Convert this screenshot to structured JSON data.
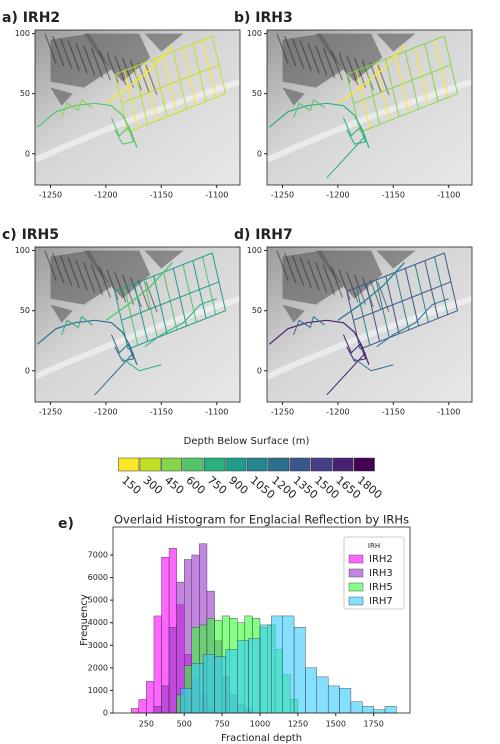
{
  "chart_data": [
    {
      "type": "map",
      "title": "a) IRH2",
      "xlim": [
        -1264,
        -1079
      ],
      "ylim": [
        -26,
        103
      ],
      "xticks": [
        -1250,
        -1200,
        -1150,
        -1100
      ],
      "yticks": [
        0,
        50,
        100
      ]
    },
    {
      "type": "map",
      "title": "b) IRH3",
      "xlim": [
        -1264,
        -1079
      ],
      "ylim": [
        -26,
        103
      ],
      "xticks": [
        -1250,
        -1200,
        -1150,
        -1100
      ],
      "yticks": [
        0,
        50,
        100
      ]
    },
    {
      "type": "map",
      "title": "c) IRH5",
      "xlim": [
        -1264,
        -1079
      ],
      "ylim": [
        -26,
        103
      ],
      "xticks": [
        -1250,
        -1200,
        -1150,
        -1100
      ],
      "yticks": [
        0,
        50,
        100
      ]
    },
    {
      "type": "map",
      "title": "d) IRH7",
      "xlim": [
        -1264,
        -1079
      ],
      "ylim": [
        -26,
        103
      ],
      "xticks": [
        -1250,
        -1200,
        -1150,
        -1100
      ],
      "yticks": [
        0,
        50,
        100
      ]
    },
    {
      "type": "colorbar",
      "title": "Depth Below Surface (m)",
      "levels": [
        150,
        300,
        450,
        600,
        750,
        900,
        1050,
        1200,
        1350,
        1500,
        1650,
        1800
      ],
      "colors": [
        "#fde725",
        "#c2df23",
        "#86d549",
        "#52c569",
        "#2ab07f",
        "#1e9b8a",
        "#25858e",
        "#2d708e",
        "#38588c",
        "#433e85",
        "#482173",
        "#440154"
      ]
    },
    {
      "type": "histogram",
      "title": "Overlaid Histogram for Englacial Reflection by IRHs",
      "panel_label": "e)",
      "x_label": "Fractional depth",
      "y_label": "Frequency",
      "legend_title": "IRH",
      "legend": "upper right",
      "xlim": [
        30,
        1990
      ],
      "ylim": [
        0,
        8240
      ],
      "xticks": [
        250,
        500,
        750,
        1000,
        1250,
        1500,
        1750
      ],
      "yticks": [
        0,
        1000,
        2000,
        3000,
        4000,
        5000,
        6000,
        7000
      ],
      "series": [
        {
          "name": "IRH2",
          "color": "#ff00ff",
          "bins": [
            150,
            200,
            250,
            300,
            350,
            400,
            450,
            500,
            550,
            600,
            650,
            700
          ],
          "values": [
            200,
            600,
            1400,
            4300,
            6900,
            7300,
            4800,
            2600,
            1500,
            800,
            300
          ]
        },
        {
          "name": "IRH3",
          "color": "#9933cc",
          "bins": [
            300,
            350,
            400,
            450,
            500,
            550,
            600,
            650,
            700,
            750,
            800,
            850,
            900,
            950
          ],
          "values": [
            300,
            1200,
            3800,
            5800,
            6800,
            7000,
            7500,
            5400,
            3200,
            1600,
            800,
            400,
            200
          ]
        },
        {
          "name": "IRH5",
          "color": "#33ff33",
          "bins": [
            450,
            500,
            550,
            600,
            650,
            700,
            750,
            800,
            850,
            900,
            950,
            1000,
            1050,
            1100,
            1150,
            1200,
            1250
          ],
          "values": [
            800,
            2100,
            3800,
            3900,
            4200,
            4100,
            4300,
            4200,
            4000,
            4300,
            4200,
            3800,
            3900,
            2800,
            1700,
            600
          ]
        },
        {
          "name": "IRH7",
          "color": "#33ccff",
          "bins": [
            475,
            550,
            625,
            700,
            775,
            850,
            925,
            1000,
            1075,
            1150,
            1225,
            1300,
            1375,
            1450,
            1525,
            1600,
            1675,
            1750,
            1825,
            1900
          ],
          "values": [
            1100,
            2200,
            2600,
            2500,
            2800,
            3200,
            3300,
            3900,
            4300,
            4300,
            3800,
            2000,
            1600,
            1200,
            1100,
            500,
            300,
            150,
            300
          ]
        }
      ]
    }
  ]
}
